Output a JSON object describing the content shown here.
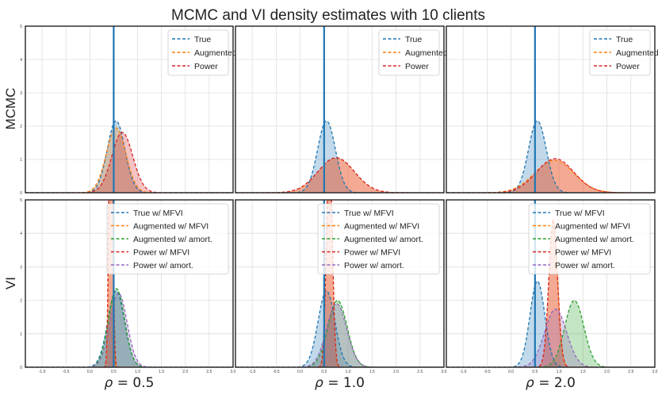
{
  "chart_data": {
    "type": "area",
    "title": "MCMC and VI density estimates with 10 clients",
    "rows": [
      "MCMC",
      "VI"
    ],
    "columns": [
      "ρ = 0.5",
      "ρ = 1.0",
      "ρ = 2.0"
    ],
    "column_labels": [
      {
        "italic": "ρ",
        "rest": " = 0.5"
      },
      {
        "italic": "ρ",
        "rest": " = 1.0"
      },
      {
        "italic": "ρ",
        "rest": " = 2.0"
      }
    ],
    "xlim": [
      -1.35,
      3.0
    ],
    "ylim": [
      0,
      5
    ],
    "x_ticks": [
      -1.0,
      -0.5,
      0.0,
      0.5,
      1.0,
      1.5,
      2.0,
      2.5,
      3.0
    ],
    "x_tick_labels": [
      "-1.0",
      "-0.5",
      "0.0",
      "0.5",
      "1.0",
      "1.5",
      "2.0",
      "2.5",
      "3.0"
    ],
    "y_ticks": [
      0,
      1,
      2,
      3,
      4,
      5
    ],
    "y_tick_labels": [
      "0",
      "1",
      "2",
      "3",
      "4",
      "5"
    ],
    "grid": true,
    "true_value": 0.5,
    "colors": {
      "True": "#1f77b4",
      "Augmented": "#ff7f0e",
      "Power": "#d62728",
      "True w/ MFVI": "#1f77b4",
      "Augmented w/ MFVI": "#ff7f0e",
      "Augmented w/ amort.": "#2ca02c",
      "Power w/ MFVI": "#d62728",
      "Power w/ amort.": "#9467bd"
    },
    "legend_position": "top-right",
    "panels": [
      {
        "row": "MCMC",
        "column": "ρ = 0.5",
        "series": [
          {
            "name": "True",
            "type": "normal",
            "mean": 0.55,
            "sd": 0.185
          },
          {
            "name": "Augmented",
            "type": "normal",
            "mean": 0.55,
            "sd": 0.205
          },
          {
            "name": "Power",
            "type": "normal",
            "mean": 0.68,
            "sd": 0.22
          }
        ]
      },
      {
        "row": "MCMC",
        "column": "ρ = 1.0",
        "series": [
          {
            "name": "True",
            "type": "normal",
            "mean": 0.55,
            "sd": 0.185
          },
          {
            "name": "Augmented",
            "type": "normal",
            "mean": 0.75,
            "sd": 0.38
          },
          {
            "name": "Power",
            "type": "normal",
            "mean": 0.75,
            "sd": 0.38
          }
        ]
      },
      {
        "row": "MCMC",
        "column": "ρ = 2.0",
        "series": [
          {
            "name": "True",
            "type": "normal",
            "mean": 0.55,
            "sd": 0.185
          },
          {
            "name": "Augmented",
            "type": "normal",
            "mean": 0.9,
            "sd": 0.41
          },
          {
            "name": "Power",
            "type": "normal",
            "mean": 0.92,
            "sd": 0.39
          }
        ]
      },
      {
        "row": "VI",
        "column": "ρ = 0.5",
        "series": [
          {
            "name": "True w/ MFVI",
            "type": "normal",
            "mean": 0.55,
            "sd": 0.175
          },
          {
            "name": "Augmented w/ MFVI",
            "type": "normal",
            "mean": 0.44,
            "sd": 0.032
          },
          {
            "name": "Augmented w/ amort.",
            "type": "normal",
            "mean": 0.56,
            "sd": 0.17
          },
          {
            "name": "Power w/ MFVI",
            "type": "normal",
            "mean": 0.44,
            "sd": 0.036
          },
          {
            "name": "Power w/ amort.",
            "type": "normal",
            "mean": 0.6,
            "sd": 0.18
          }
        ]
      },
      {
        "row": "VI",
        "column": "ρ = 1.0",
        "series": [
          {
            "name": "True w/ MFVI",
            "type": "normal",
            "mean": 0.55,
            "sd": 0.175
          },
          {
            "name": "Augmented w/ MFVI",
            "type": "normal",
            "mean": 0.61,
            "sd": 0.058
          },
          {
            "name": "Augmented w/ amort.",
            "type": "normal",
            "mean": 0.78,
            "sd": 0.2
          },
          {
            "name": "Power w/ MFVI",
            "type": "normal",
            "mean": 0.61,
            "sd": 0.06
          },
          {
            "name": "Power w/ amort.",
            "type": "normal",
            "mean": 0.76,
            "sd": 0.21
          }
        ]
      },
      {
        "row": "VI",
        "column": "ρ = 2.0",
        "series": [
          {
            "name": "True w/ MFVI",
            "type": "normal",
            "mean": 0.55,
            "sd": 0.155
          },
          {
            "name": "Augmented w/ MFVI",
            "type": "normal",
            "mean": 0.88,
            "sd": 0.09
          },
          {
            "name": "Augmented w/ amort.",
            "type": "normal",
            "mean": 1.32,
            "sd": 0.2
          },
          {
            "name": "Power w/ MFVI",
            "type": "normal",
            "mean": 0.88,
            "sd": 0.092
          },
          {
            "name": "Power w/ amort.",
            "type": "normal",
            "mean": 0.93,
            "sd": 0.23
          }
        ]
      }
    ]
  }
}
